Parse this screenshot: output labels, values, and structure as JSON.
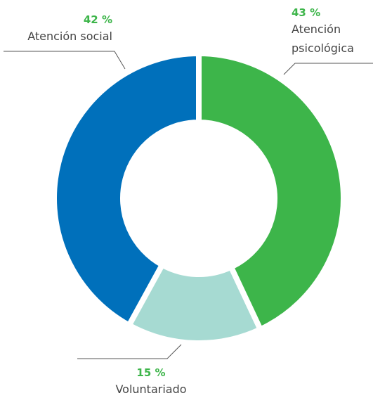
{
  "chart_data": {
    "type": "donut",
    "categories": [
      "Atención psicológica",
      "Voluntariado",
      "Atención social"
    ],
    "values": [
      43,
      15,
      42
    ],
    "value_labels": [
      "43 %",
      "15 %",
      "42 %"
    ],
    "colors": [
      "#3db54a",
      "#a6dad2",
      "#0070bb"
    ],
    "label_color": "#3db54a"
  }
}
